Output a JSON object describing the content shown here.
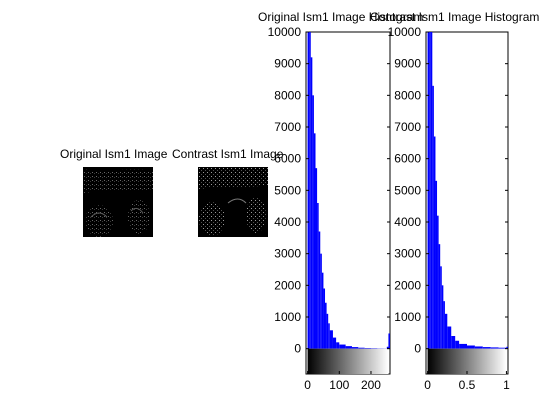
{
  "images": [
    {
      "title": "Original Ism1 Image"
    },
    {
      "title": "Contrast Ism1 Image"
    }
  ],
  "chart_data": [
    {
      "type": "bar",
      "title": "Original Ism1 Image Histogram",
      "xlabel": "",
      "ylabel": "",
      "xlim": [
        -5,
        260
      ],
      "ylim": [
        -800,
        10000
      ],
      "xticks": [
        0,
        100,
        200
      ],
      "yticks": [
        0,
        1000,
        2000,
        3000,
        4000,
        5000,
        6000,
        7000,
        8000,
        9000,
        10000
      ],
      "x": [
        0,
        5,
        10,
        15,
        20,
        25,
        30,
        35,
        40,
        45,
        50,
        55,
        60,
        65,
        70,
        80,
        90,
        100,
        120,
        140,
        160,
        180,
        200,
        220,
        240,
        250,
        255
      ],
      "values": [
        10000,
        10000,
        9200,
        8000,
        6800,
        5700,
        4600,
        3700,
        3000,
        2400,
        1900,
        1450,
        1100,
        800,
        580,
        350,
        200,
        130,
        80,
        50,
        30,
        20,
        15,
        10,
        8,
        60,
        480
      ],
      "color": "#0000ff",
      "colorbar": "gray"
    },
    {
      "type": "bar",
      "title": "Contrast Ism1 Image Histogram",
      "xlabel": "",
      "ylabel": "",
      "xlim": [
        -0.02,
        1.02
      ],
      "ylim": [
        -800,
        10000
      ],
      "xticks": [
        0,
        0.5,
        1
      ],
      "yticks": [
        0,
        1000,
        2000,
        3000,
        4000,
        5000,
        6000,
        7000,
        8000,
        9000,
        10000
      ],
      "x": [
        0,
        0.02,
        0.04,
        0.06,
        0.08,
        0.1,
        0.12,
        0.14,
        0.16,
        0.18,
        0.2,
        0.22,
        0.25,
        0.3,
        0.35,
        0.4,
        0.5,
        0.6,
        0.7,
        0.8,
        0.9,
        1.0
      ],
      "values": [
        10000,
        10000,
        10000,
        8300,
        6700,
        5300,
        4200,
        3300,
        2600,
        2000,
        1500,
        1100,
        700,
        400,
        250,
        150,
        100,
        70,
        50,
        40,
        30,
        60
      ],
      "color": "#0000ff",
      "colorbar": "gray"
    }
  ]
}
